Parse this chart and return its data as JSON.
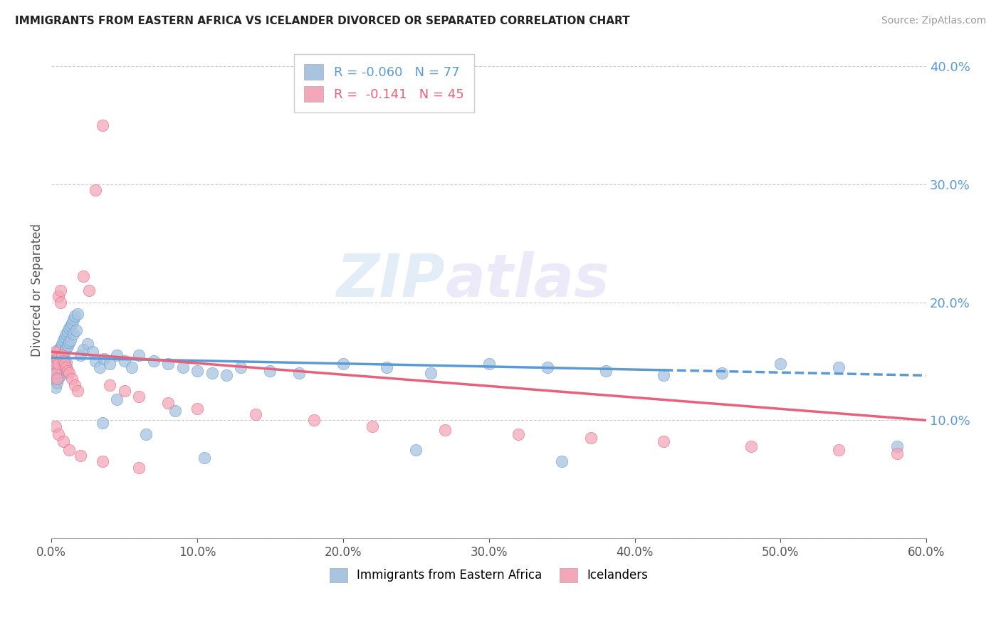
{
  "title": "IMMIGRANTS FROM EASTERN AFRICA VS ICELANDER DIVORCED OR SEPARATED CORRELATION CHART",
  "source": "Source: ZipAtlas.com",
  "ylabel_left": "Divorced or Separated",
  "r_blue": -0.06,
  "n_blue": 77,
  "r_pink": -0.141,
  "n_pink": 45,
  "xlim": [
    0,
    0.6
  ],
  "ylim": [
    0,
    0.42
  ],
  "xticks": [
    0.0,
    0.1,
    0.2,
    0.3,
    0.4,
    0.5,
    0.6
  ],
  "yticks_right": [
    0.1,
    0.2,
    0.3,
    0.4
  ],
  "color_blue": "#a8c4e0",
  "color_pink": "#f4a7b9",
  "color_blue_dark": "#5b9bd5",
  "color_pink_dark": "#e8607a",
  "legend_label_blue": "Immigrants from Eastern Africa",
  "legend_label_pink": "Icelanders",
  "watermark_zip": "ZIP",
  "watermark_atlas": "atlas",
  "blue_scatter_x": [
    0.001,
    0.002,
    0.002,
    0.003,
    0.003,
    0.003,
    0.004,
    0.004,
    0.004,
    0.005,
    0.005,
    0.005,
    0.006,
    0.006,
    0.006,
    0.007,
    0.007,
    0.007,
    0.008,
    0.008,
    0.008,
    0.009,
    0.009,
    0.01,
    0.01,
    0.01,
    0.011,
    0.011,
    0.012,
    0.012,
    0.013,
    0.013,
    0.014,
    0.015,
    0.015,
    0.016,
    0.017,
    0.018,
    0.02,
    0.022,
    0.025,
    0.028,
    0.03,
    0.033,
    0.036,
    0.04,
    0.045,
    0.05,
    0.055,
    0.06,
    0.07,
    0.08,
    0.09,
    0.1,
    0.11,
    0.12,
    0.13,
    0.15,
    0.17,
    0.2,
    0.23,
    0.26,
    0.3,
    0.34,
    0.38,
    0.42,
    0.46,
    0.5,
    0.54,
    0.58,
    0.035,
    0.045,
    0.065,
    0.085,
    0.105,
    0.25,
    0.35
  ],
  "blue_scatter_y": [
    0.148,
    0.155,
    0.135,
    0.152,
    0.142,
    0.128,
    0.158,
    0.145,
    0.132,
    0.16,
    0.148,
    0.136,
    0.162,
    0.15,
    0.138,
    0.165,
    0.153,
    0.141,
    0.168,
    0.156,
    0.144,
    0.17,
    0.158,
    0.173,
    0.161,
    0.149,
    0.175,
    0.163,
    0.178,
    0.166,
    0.18,
    0.168,
    0.182,
    0.185,
    0.173,
    0.188,
    0.176,
    0.19,
    0.155,
    0.16,
    0.165,
    0.158,
    0.15,
    0.145,
    0.152,
    0.148,
    0.155,
    0.15,
    0.145,
    0.155,
    0.15,
    0.148,
    0.145,
    0.142,
    0.14,
    0.138,
    0.145,
    0.142,
    0.14,
    0.148,
    0.145,
    0.14,
    0.148,
    0.145,
    0.142,
    0.138,
    0.14,
    0.148,
    0.145,
    0.078,
    0.098,
    0.118,
    0.088,
    0.108,
    0.068,
    0.075,
    0.065
  ],
  "pink_scatter_x": [
    0.001,
    0.002,
    0.003,
    0.003,
    0.004,
    0.004,
    0.005,
    0.005,
    0.006,
    0.006,
    0.007,
    0.008,
    0.009,
    0.01,
    0.011,
    0.012,
    0.014,
    0.016,
    0.018,
    0.022,
    0.026,
    0.03,
    0.035,
    0.04,
    0.05,
    0.06,
    0.08,
    0.1,
    0.14,
    0.18,
    0.22,
    0.27,
    0.32,
    0.37,
    0.42,
    0.48,
    0.54,
    0.58,
    0.003,
    0.005,
    0.008,
    0.012,
    0.02,
    0.035,
    0.06
  ],
  "pink_scatter_y": [
    0.155,
    0.148,
    0.158,
    0.14,
    0.152,
    0.135,
    0.205,
    0.148,
    0.21,
    0.2,
    0.155,
    0.15,
    0.148,
    0.145,
    0.142,
    0.14,
    0.135,
    0.13,
    0.125,
    0.222,
    0.21,
    0.295,
    0.35,
    0.13,
    0.125,
    0.12,
    0.115,
    0.11,
    0.105,
    0.1,
    0.095,
    0.092,
    0.088,
    0.085,
    0.082,
    0.078,
    0.075,
    0.072,
    0.095,
    0.088,
    0.082,
    0.075,
    0.07,
    0.065,
    0.06
  ],
  "blue_trendline_x": [
    0.0,
    0.6
  ],
  "blue_trendline_y": [
    0.153,
    0.138
  ],
  "pink_trendline_x": [
    0.0,
    0.6
  ],
  "pink_trendline_y": [
    0.158,
    0.1
  ]
}
